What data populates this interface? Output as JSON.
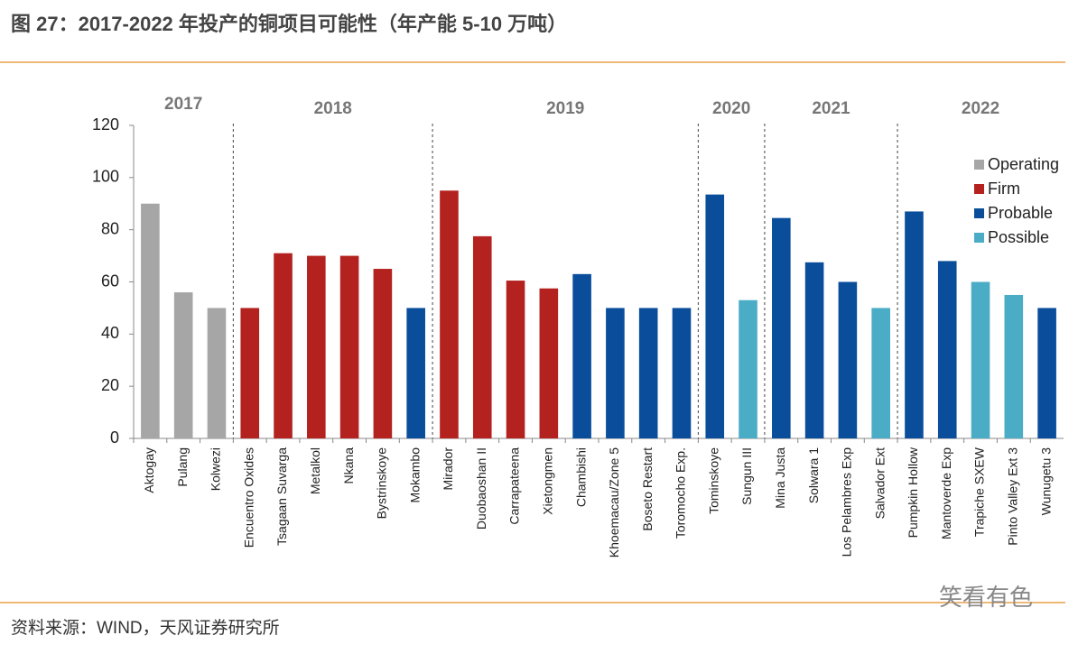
{
  "header": {
    "title": "图 27：2017-2022 年投产的铜项目可能性（年产能 5-10 万吨）"
  },
  "footer": {
    "source": "资料来源：WIND，天风证券研究所",
    "watermark": "笑看有色"
  },
  "chart_data": {
    "type": "bar",
    "groups": [
      {
        "label": "2017",
        "categories": [
          "Aktogay",
          "Pulang",
          "Kolwezi"
        ]
      },
      {
        "label": "2018",
        "categories": [
          "Encuentro Oxides",
          "Tsagaan Suvarga",
          "Metalkol",
          "Nkana",
          "Bystrinskoye",
          "Mokambo"
        ]
      },
      {
        "label": "2019",
        "categories": [
          "Mirador",
          "Duobaoshan II",
          "Carrapateena",
          "Xietongmen",
          "Chambishi",
          "Khoemacau/Zone 5",
          "Boseto Restart",
          "Toromocho Exp."
        ]
      },
      {
        "label": "2020",
        "categories": [
          "Tominskoye",
          "Sungun III"
        ]
      },
      {
        "label": "2021",
        "categories": [
          "Mina Justa",
          "Solwara 1",
          "Los Pelambres Exp",
          "Salvador Ext"
        ]
      },
      {
        "label": "2022",
        "categories": [
          "Pumpkin Hollow",
          "Mantoverde Exp",
          "Trapiche SXEW",
          "Pinto Valley Ext 3",
          "Wunugetu 3"
        ]
      }
    ],
    "series": [
      {
        "name": "Operating",
        "color": "#a6a6a6",
        "values": [
          90,
          56,
          50,
          null,
          null,
          null,
          null,
          null,
          null,
          null,
          null,
          null,
          null,
          null,
          null,
          null,
          null,
          null,
          null,
          null,
          null,
          null,
          null,
          null,
          null,
          null,
          null,
          null
        ]
      },
      {
        "name": "Firm",
        "color": "#b3221f",
        "values": [
          null,
          null,
          null,
          50,
          71,
          70,
          70,
          65,
          null,
          95,
          77.5,
          60.5,
          57.5,
          null,
          null,
          null,
          null,
          null,
          null,
          null,
          null,
          null,
          null,
          null,
          null,
          null,
          null,
          null
        ]
      },
      {
        "name": "Probable",
        "color": "#0a4e9b",
        "values": [
          null,
          null,
          null,
          null,
          null,
          null,
          null,
          null,
          50,
          null,
          null,
          null,
          null,
          63,
          50,
          50,
          50,
          93.5,
          null,
          84.5,
          67.5,
          60,
          null,
          87,
          68,
          null,
          null,
          50
        ]
      },
      {
        "name": "Possible",
        "color": "#4bacc6",
        "values": [
          null,
          null,
          null,
          null,
          null,
          null,
          null,
          null,
          null,
          null,
          null,
          null,
          null,
          null,
          null,
          null,
          null,
          null,
          53,
          null,
          null,
          null,
          50,
          null,
          null,
          60,
          55,
          null
        ]
      }
    ],
    "ylim": [
      0,
      120
    ],
    "yticks": [
      0,
      20,
      40,
      60,
      80,
      100,
      120
    ],
    "grid": false,
    "legend": "upper right"
  }
}
